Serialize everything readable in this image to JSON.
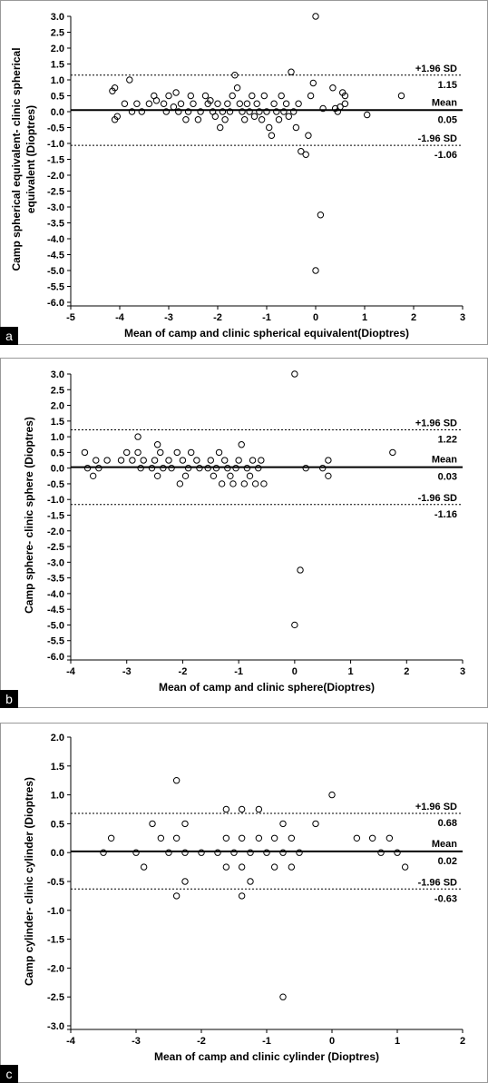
{
  "chart_data": [
    {
      "type": "scatter",
      "panel_label": "a",
      "xlabel": "Mean of camp and clinic spherical equivalent(Dioptres)",
      "ylabel": "Camp spherical equivalent- clinic spherical equivalent (Dioptres)",
      "xlim": [
        -5,
        3
      ],
      "ylim": [
        -6.0,
        3.0
      ],
      "xticks": [
        -5,
        -4,
        -3,
        -2,
        -1,
        0,
        1,
        2,
        3
      ],
      "yticks": [
        "3.0",
        "2.5",
        "2.0",
        "1.5",
        "1.0",
        "0.5",
        "0.0",
        "-0.5",
        "-1.0",
        "-1.5",
        "-2.0",
        "-2.5",
        "-3.0",
        "-3.5",
        "-4.0",
        "-4.5",
        "-5.0",
        "-5.5",
        "-6.0"
      ],
      "mean": 0.05,
      "upper_loa": 1.15,
      "lower_loa": -1.06,
      "labels": {
        "upper_sd": "+1.96 SD",
        "upper_val": "1.15",
        "mean": "Mean",
        "mean_val": "0.05",
        "lower_sd": "-1.96 SD",
        "lower_val": "-1.06"
      },
      "points": [
        [
          -4.15,
          0.65
        ],
        [
          -4.1,
          0.75
        ],
        [
          -4.1,
          -0.25
        ],
        [
          -4.05,
          -0.15
        ],
        [
          -3.9,
          0.25
        ],
        [
          -3.8,
          1.0
        ],
        [
          -3.75,
          0.0
        ],
        [
          -3.65,
          0.25
        ],
        [
          -3.55,
          0.0
        ],
        [
          -3.4,
          0.25
        ],
        [
          -3.3,
          0.5
        ],
        [
          -3.25,
          0.35
        ],
        [
          -3.1,
          0.25
        ],
        [
          -3.05,
          0.0
        ],
        [
          -3.0,
          0.5
        ],
        [
          -2.9,
          0.15
        ],
        [
          -2.85,
          0.6
        ],
        [
          -2.8,
          0.0
        ],
        [
          -2.75,
          0.25
        ],
        [
          -2.65,
          -0.25
        ],
        [
          -2.6,
          0.0
        ],
        [
          -2.55,
          0.5
        ],
        [
          -2.5,
          0.25
        ],
        [
          -2.4,
          -0.25
        ],
        [
          -2.35,
          0.0
        ],
        [
          -2.25,
          0.5
        ],
        [
          -2.2,
          0.25
        ],
        [
          -2.15,
          0.35
        ],
        [
          -2.1,
          0.0
        ],
        [
          -2.05,
          -0.15
        ],
        [
          -2.0,
          0.25
        ],
        [
          -1.95,
          -0.5
        ],
        [
          -1.9,
          0.0
        ],
        [
          -1.85,
          -0.25
        ],
        [
          -1.8,
          0.25
        ],
        [
          -1.75,
          0.0
        ],
        [
          -1.7,
          0.5
        ],
        [
          -1.65,
          1.15
        ],
        [
          -1.6,
          0.75
        ],
        [
          -1.55,
          0.25
        ],
        [
          -1.5,
          0.0
        ],
        [
          -1.45,
          -0.25
        ],
        [
          -1.4,
          0.25
        ],
        [
          -1.35,
          0.0
        ],
        [
          -1.3,
          0.5
        ],
        [
          -1.25,
          -0.15
        ],
        [
          -1.2,
          0.25
        ],
        [
          -1.15,
          0.0
        ],
        [
          -1.1,
          -0.25
        ],
        [
          -1.05,
          0.5
        ],
        [
          -1.0,
          0.0
        ],
        [
          -0.95,
          -0.5
        ],
        [
          -0.9,
          -0.75
        ],
        [
          -0.85,
          0.25
        ],
        [
          -0.8,
          0.0
        ],
        [
          -0.75,
          -0.25
        ],
        [
          -0.7,
          0.5
        ],
        [
          -0.65,
          0.0
        ],
        [
          -0.6,
          0.25
        ],
        [
          -0.55,
          -0.15
        ],
        [
          -0.5,
          1.25
        ],
        [
          -0.45,
          0.0
        ],
        [
          -0.4,
          -0.5
        ],
        [
          -0.35,
          0.25
        ],
        [
          -0.3,
          -1.25
        ],
        [
          -0.2,
          -1.35
        ],
        [
          -0.15,
          -0.75
        ],
        [
          -0.1,
          0.5
        ],
        [
          -0.05,
          0.9
        ],
        [
          0.0,
          3.0
        ],
        [
          0.0,
          -5.0
        ],
        [
          0.1,
          -3.25
        ],
        [
          0.15,
          0.1
        ],
        [
          0.35,
          0.75
        ],
        [
          0.4,
          0.1
        ],
        [
          0.45,
          0.0
        ],
        [
          0.5,
          0.15
        ],
        [
          0.55,
          0.6
        ],
        [
          0.6,
          0.25
        ],
        [
          0.6,
          0.5
        ],
        [
          1.05,
          -0.1
        ],
        [
          1.75,
          0.5
        ]
      ]
    },
    {
      "type": "scatter",
      "panel_label": "b",
      "xlabel": "Mean of camp and clinic sphere(Dioptres)",
      "ylabel": "Camp sphere- clinic sphere (Dioptres)",
      "xlim": [
        -4,
        3
      ],
      "ylim": [
        -6.0,
        3.0
      ],
      "xticks": [
        -4,
        -3,
        -2,
        -1,
        0,
        1,
        2,
        3
      ],
      "yticks": [
        "3.0",
        "2.5",
        "2.0",
        "1.5",
        "1.0",
        "0.5",
        "0.0",
        "-0.5",
        "-1.0",
        "-1.5",
        "-2.0",
        "-2.5",
        "-3.0",
        "-3.5",
        "-4.0",
        "-4.5",
        "-5.0",
        "-5.5",
        "-6.0"
      ],
      "mean": 0.03,
      "upper_loa": 1.22,
      "lower_loa": -1.16,
      "labels": {
        "upper_sd": "+1.96 SD",
        "upper_val": "1.22",
        "mean": "Mean",
        "mean_val": "0.03",
        "lower_sd": "-1.96 SD",
        "lower_val": "-1.16"
      },
      "points": [
        [
          -3.75,
          0.5
        ],
        [
          -3.7,
          0.0
        ],
        [
          -3.6,
          -0.25
        ],
        [
          -3.55,
          0.25
        ],
        [
          -3.5,
          0.0
        ],
        [
          -3.35,
          0.25
        ],
        [
          -3.1,
          0.25
        ],
        [
          -3.0,
          0.5
        ],
        [
          -2.9,
          0.25
        ],
        [
          -2.8,
          1.0
        ],
        [
          -2.8,
          0.5
        ],
        [
          -2.75,
          0.0
        ],
        [
          -2.7,
          0.25
        ],
        [
          -2.55,
          0.0
        ],
        [
          -2.5,
          0.25
        ],
        [
          -2.45,
          0.75
        ],
        [
          -2.45,
          -0.25
        ],
        [
          -2.4,
          0.5
        ],
        [
          -2.35,
          0.0
        ],
        [
          -2.25,
          0.25
        ],
        [
          -2.2,
          0.0
        ],
        [
          -2.1,
          0.5
        ],
        [
          -2.05,
          -0.5
        ],
        [
          -2.0,
          0.25
        ],
        [
          -1.95,
          -0.25
        ],
        [
          -1.9,
          0.0
        ],
        [
          -1.85,
          0.5
        ],
        [
          -1.75,
          0.25
        ],
        [
          -1.7,
          0.0
        ],
        [
          -1.55,
          0.0
        ],
        [
          -1.5,
          0.25
        ],
        [
          -1.45,
          -0.25
        ],
        [
          -1.4,
          0.0
        ],
        [
          -1.35,
          0.5
        ],
        [
          -1.3,
          -0.5
        ],
        [
          -1.25,
          0.25
        ],
        [
          -1.2,
          0.0
        ],
        [
          -1.15,
          -0.25
        ],
        [
          -1.1,
          -0.5
        ],
        [
          -1.05,
          0.0
        ],
        [
          -1.0,
          0.25
        ],
        [
          -0.95,
          0.75
        ],
        [
          -0.9,
          -0.5
        ],
        [
          -0.85,
          0.0
        ],
        [
          -0.8,
          -0.25
        ],
        [
          -0.75,
          0.25
        ],
        [
          -0.7,
          -0.5
        ],
        [
          -0.65,
          0.0
        ],
        [
          -0.6,
          0.25
        ],
        [
          -0.55,
          -0.5
        ],
        [
          0.0,
          3.0
        ],
        [
          0.0,
          -5.0
        ],
        [
          0.1,
          -3.25
        ],
        [
          0.2,
          0.0
        ],
        [
          0.5,
          0.0
        ],
        [
          0.6,
          0.25
        ],
        [
          0.6,
          -0.25
        ],
        [
          1.75,
          0.5
        ]
      ]
    },
    {
      "type": "scatter",
      "panel_label": "c",
      "xlabel": "Mean of camp and clinic cylinder (Dioptres)",
      "ylabel": "Camp cylinder- clinic cylinder (Dioptres)",
      "xlim": [
        -4,
        2
      ],
      "ylim": [
        -3.0,
        2.0
      ],
      "xticks": [
        -4,
        -3,
        -2,
        -1,
        0,
        1,
        2
      ],
      "yticks": [
        "2.0",
        "1.5",
        "1.0",
        "0.5",
        "0.0",
        "-0.5",
        "-1.0",
        "-1.5",
        "-2.0",
        "-2.5",
        "-3.0"
      ],
      "mean": 0.02,
      "upper_loa": 0.68,
      "lower_loa": -0.63,
      "labels": {
        "upper_sd": "+1.96 SD",
        "upper_val": "0.68",
        "mean": "Mean",
        "mean_val": "0.02",
        "lower_sd": "-1.96 SD",
        "lower_val": "-0.63"
      },
      "points": [
        [
          -3.5,
          0.0
        ],
        [
          -3.38,
          0.25
        ],
        [
          -3.0,
          0.0
        ],
        [
          -2.88,
          -0.25
        ],
        [
          -2.75,
          0.5
        ],
        [
          -2.62,
          0.25
        ],
        [
          -2.5,
          0.0
        ],
        [
          -2.38,
          1.25
        ],
        [
          -2.38,
          0.25
        ],
        [
          -2.38,
          -0.75
        ],
        [
          -2.25,
          0.5
        ],
        [
          -2.25,
          0.0
        ],
        [
          -2.25,
          -0.5
        ],
        [
          -2.0,
          0.0
        ],
        [
          -1.75,
          0.0
        ],
        [
          -1.62,
          0.75
        ],
        [
          -1.62,
          0.25
        ],
        [
          -1.62,
          -0.25
        ],
        [
          -1.5,
          0.0
        ],
        [
          -1.38,
          0.75
        ],
        [
          -1.38,
          0.25
        ],
        [
          -1.38,
          -0.25
        ],
        [
          -1.38,
          -0.75
        ],
        [
          -1.25,
          0.0
        ],
        [
          -1.25,
          -0.5
        ],
        [
          -1.12,
          0.75
        ],
        [
          -1.12,
          0.25
        ],
        [
          -1.0,
          0.0
        ],
        [
          -0.88,
          0.25
        ],
        [
          -0.88,
          -0.25
        ],
        [
          -0.75,
          0.5
        ],
        [
          -0.75,
          0.0
        ],
        [
          -0.75,
          -2.5
        ],
        [
          -0.62,
          0.25
        ],
        [
          -0.62,
          -0.25
        ],
        [
          -0.5,
          0.0
        ],
        [
          -0.25,
          0.5
        ],
        [
          0.0,
          1.0
        ],
        [
          0.38,
          0.25
        ],
        [
          0.62,
          0.25
        ],
        [
          0.75,
          0.0
        ],
        [
          0.88,
          0.25
        ],
        [
          1.0,
          0.0
        ],
        [
          1.12,
          -0.25
        ]
      ]
    }
  ]
}
